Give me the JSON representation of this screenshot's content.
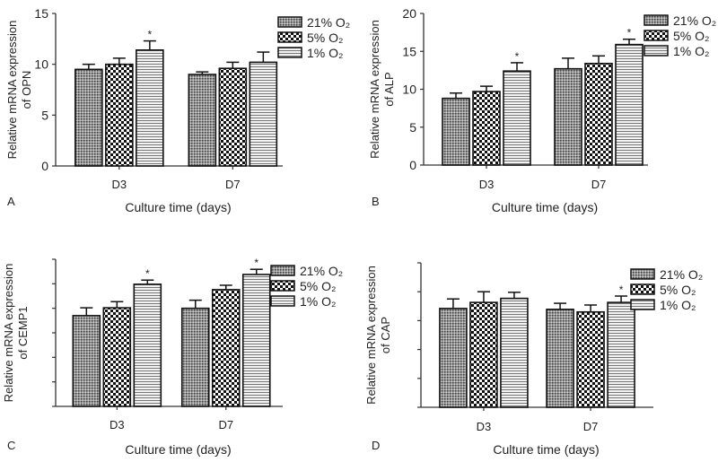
{
  "legend": [
    "21% O₂",
    "5% O₂",
    "1% O₂"
  ],
  "chart_data": [
    {
      "panel": "A",
      "type": "bar",
      "title": "",
      "categories": [
        "D3",
        "D7"
      ],
      "xlabel": "Culture time (days)",
      "ylabel": [
        "Relative mRNA expression",
        "of OPN"
      ],
      "ylim": [
        0,
        15
      ],
      "yticks": [
        0,
        5,
        10,
        15
      ],
      "show_tick_labels": true,
      "series": [
        {
          "name": "21% O₂",
          "values": [
            9.5,
            9.0
          ],
          "errors": [
            0.5,
            0.25
          ],
          "sig": [
            false,
            false
          ]
        },
        {
          "name": "5% O₂",
          "values": [
            10.0,
            9.6
          ],
          "errors": [
            0.6,
            0.6
          ],
          "sig": [
            false,
            false
          ]
        },
        {
          "name": "1% O₂",
          "values": [
            11.4,
            10.2
          ],
          "errors": [
            0.9,
            1.0
          ],
          "sig": [
            true,
            false
          ]
        }
      ]
    },
    {
      "panel": "B",
      "type": "bar",
      "title": "",
      "categories": [
        "D3",
        "D7"
      ],
      "xlabel": "Culture time (days)",
      "ylabel": [
        "Relative mRNA expression",
        "of ALP"
      ],
      "ylim": [
        0,
        20
      ],
      "yticks": [
        0,
        5,
        10,
        15,
        20
      ],
      "show_tick_labels": true,
      "series": [
        {
          "name": "21% O₂",
          "values": [
            8.8,
            12.7
          ],
          "errors": [
            0.7,
            1.4
          ],
          "sig": [
            false,
            false
          ]
        },
        {
          "name": "5% O₂",
          "values": [
            9.7,
            13.4
          ],
          "errors": [
            0.7,
            1.0
          ],
          "sig": [
            false,
            false
          ]
        },
        {
          "name": "1% O₂",
          "values": [
            12.4,
            15.9
          ],
          "errors": [
            1.1,
            0.7
          ],
          "sig": [
            true,
            true
          ]
        }
      ]
    },
    {
      "panel": "C",
      "type": "bar",
      "title": "",
      "categories": [
        "D3",
        "D7"
      ],
      "xlabel": "Culture time (days)",
      "ylabel": [
        "Relative mRNA expression",
        "of CEMP1"
      ],
      "ylim": [
        0,
        6
      ],
      "yticks": [
        0,
        1,
        2,
        3,
        4,
        5,
        6
      ],
      "show_tick_labels": false,
      "series": [
        {
          "name": "21% O₂",
          "values": [
            3.7,
            4.0
          ],
          "errors": [
            0.32,
            0.33
          ],
          "sig": [
            false,
            false
          ]
        },
        {
          "name": "5% O₂",
          "values": [
            4.02,
            4.76
          ],
          "errors": [
            0.25,
            0.18
          ],
          "sig": [
            false,
            false
          ]
        },
        {
          "name": "1% O₂",
          "values": [
            4.98,
            5.38
          ],
          "errors": [
            0.17,
            0.21
          ],
          "sig": [
            true,
            true
          ]
        }
      ]
    },
    {
      "panel": "D",
      "type": "bar",
      "title": "",
      "categories": [
        "D3",
        "D7"
      ],
      "xlabel": "Culture time (days)",
      "ylabel": [
        "Relative mRNA expression",
        "of CAP"
      ],
      "ylim": [
        0,
        5
      ],
      "yticks": [
        0,
        1,
        2,
        3,
        4,
        5
      ],
      "show_tick_labels": false,
      "series": [
        {
          "name": "21% O₂",
          "values": [
            3.42,
            3.39
          ],
          "errors": [
            0.33,
            0.21
          ],
          "sig": [
            false,
            false
          ]
        },
        {
          "name": "5% O₂",
          "values": [
            3.63,
            3.3
          ],
          "errors": [
            0.37,
            0.24
          ],
          "sig": [
            false,
            false
          ]
        },
        {
          "name": "1% O₂",
          "values": [
            3.77,
            3.63
          ],
          "errors": [
            0.21,
            0.22
          ],
          "sig": [
            false,
            true
          ]
        }
      ]
    }
  ]
}
